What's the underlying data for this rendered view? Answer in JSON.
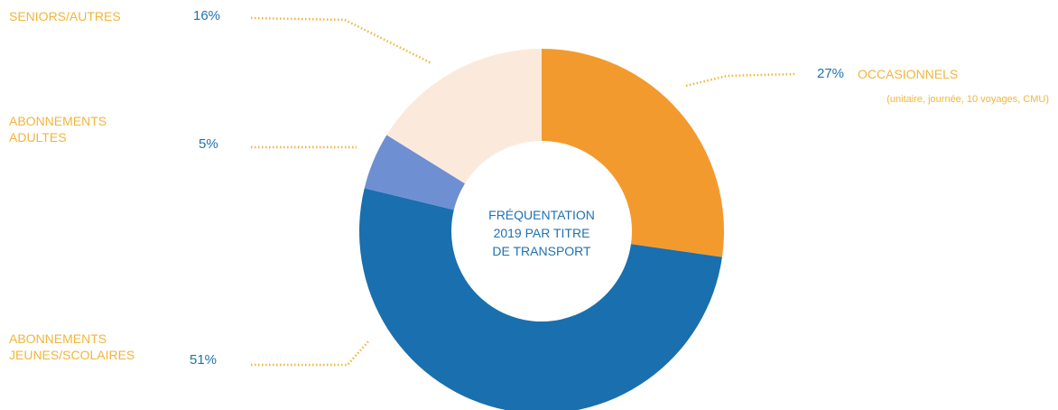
{
  "chart_data": {
    "type": "donut",
    "title_lines": [
      "FRÉQUENTATION",
      "2019 PAR TITRE",
      "DE TRANSPORT"
    ],
    "categories": [
      "OCCASIONNELS",
      "ABONNEMENTS JEUNES/SCOLAIRES",
      "ABONNEMENTS ADULTES",
      "SENIORS/AUTRES"
    ],
    "values": [
      27,
      51,
      5,
      16
    ],
    "value_labels": [
      "27%",
      "51%",
      "5%",
      "16%"
    ],
    "colors": [
      "#f39a2e",
      "#1a6fae",
      "#6f8fd3",
      "#fbeadb"
    ],
    "annotation": "(unitaire, journée, 10 voyages, CMU)",
    "legend": "outside"
  }
}
